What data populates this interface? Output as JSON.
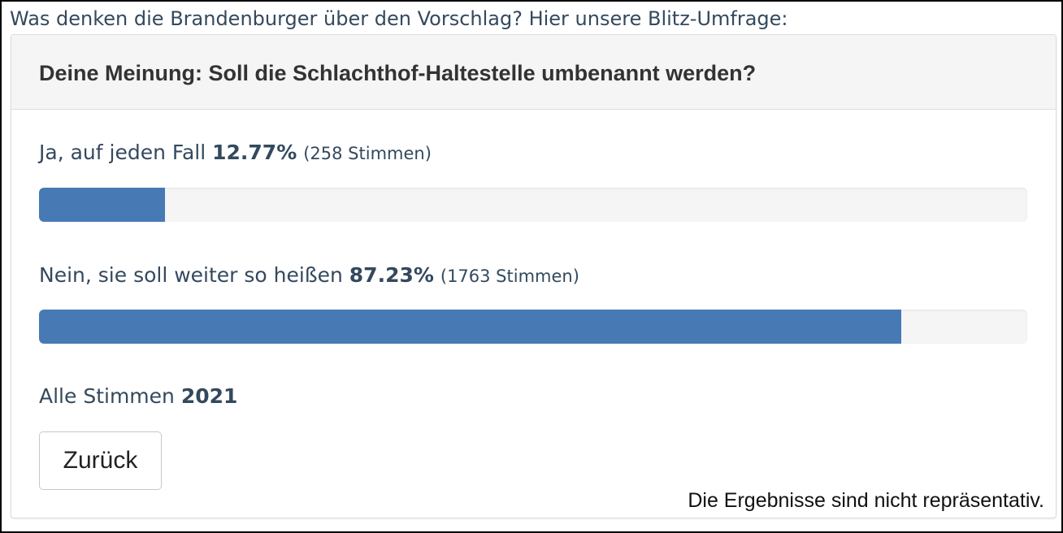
{
  "intro_text": "Was denken die Brandenburger über den Vorschlag? Hier unsere Blitz-Umfrage:",
  "poll": {
    "question": "Deine Meinung: Soll die Schlachthof-Haltestelle umbenannt werden?",
    "options": [
      {
        "label": "Ja, auf jeden Fall",
        "percent_text": "12.77%",
        "votes_text": "(258 Stimmen)",
        "fraction": 0.1277
      },
      {
        "label": "Nein, sie soll weiter so heißen",
        "percent_text": "87.23%",
        "votes_text": "(1763 Stimmen)",
        "fraction": 0.8723
      }
    ],
    "total_label": "Alle Stimmen",
    "total_value": "2021",
    "back_label": "Zurück",
    "disclaimer": "Die Ergebnisse sind nicht repräsentativ."
  },
  "colors": {
    "bar_fill": "#4779b4",
    "bar_track": "#f5f5f5",
    "text": "#34495e"
  }
}
